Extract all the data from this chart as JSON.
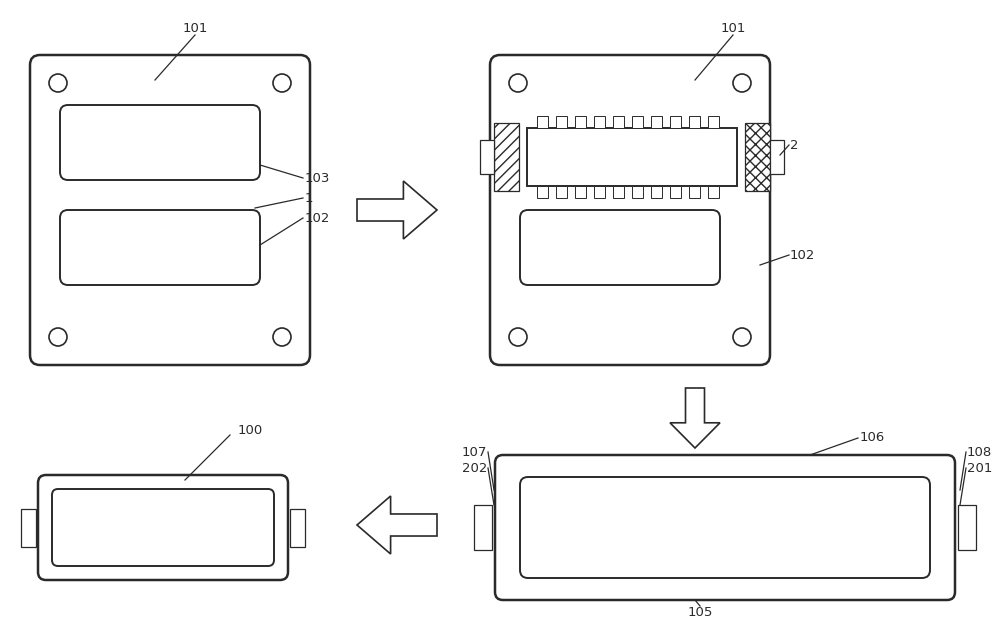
{
  "bg_color": "#ffffff",
  "line_color": "#2a2a2a",
  "text_color": "#2a2a2a",
  "font_size": 9.5
}
